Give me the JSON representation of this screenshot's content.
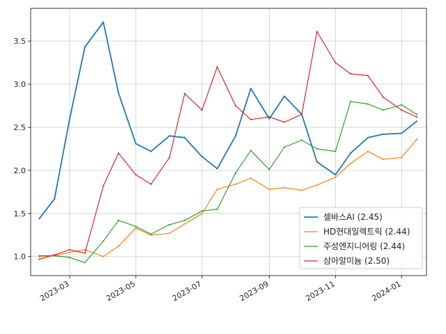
{
  "chart_data": {
    "type": "line",
    "x_dates": [
      "2023-02-01",
      "2023-02-15",
      "2023-03-01",
      "2023-03-15",
      "2023-04-01",
      "2023-04-15",
      "2023-05-01",
      "2023-05-15",
      "2023-06-01",
      "2023-06-15",
      "2023-07-01",
      "2023-07-15",
      "2023-08-01",
      "2023-08-15",
      "2023-09-01",
      "2023-09-15",
      "2023-10-01",
      "2023-10-15",
      "2023-11-01",
      "2023-11-15",
      "2023-12-01",
      "2023-12-15",
      "2024-01-01",
      "2024-01-15"
    ],
    "x_ticks": [
      "2023-03",
      "2023-05",
      "2023-07",
      "2023-09",
      "2023-11",
      "2024-01"
    ],
    "xlim": [
      "2023-01-24",
      "2024-01-24"
    ],
    "y_ticks": [
      "1.0",
      "1.5",
      "2.0",
      "2.5",
      "3.0",
      "3.5"
    ],
    "ylim": [
      0.78,
      3.88
    ],
    "grid": true,
    "legend_position": "lower-right",
    "series": [
      {
        "name": "셀바스AI (2.45)",
        "color": "#1f77b4",
        "values": [
          1.44,
          1.67,
          2.6,
          3.43,
          3.72,
          2.9,
          2.31,
          2.22,
          2.4,
          2.38,
          2.16,
          2.02,
          2.4,
          2.95,
          2.6,
          2.86,
          2.65,
          2.1,
          1.95,
          2.2,
          2.38,
          2.42,
          2.43,
          2.57
        ]
      },
      {
        "name": "HD현대일렉트릭 (2.44)",
        "color": "#ff7f0e",
        "values": [
          1.0,
          1.01,
          1.05,
          1.08,
          1.0,
          1.12,
          1.33,
          1.25,
          1.27,
          1.38,
          1.5,
          1.78,
          1.84,
          1.91,
          1.78,
          1.8,
          1.77,
          1.83,
          1.92,
          2.08,
          2.22,
          2.13,
          2.15,
          2.36
        ]
      },
      {
        "name": "주성엔지니어링 (2.44)",
        "color": "#2ca02c",
        "values": [
          1.01,
          1.01,
          0.99,
          0.93,
          1.18,
          1.42,
          1.35,
          1.26,
          1.37,
          1.42,
          1.53,
          1.55,
          1.97,
          2.23,
          2.01,
          2.27,
          2.35,
          2.25,
          2.22,
          2.8,
          2.77,
          2.7,
          2.76,
          2.65
        ]
      },
      {
        "name": "삼아알미늄 (2.50)",
        "color": "#d62728",
        "values": [
          0.97,
          1.02,
          1.08,
          1.04,
          1.82,
          2.2,
          1.95,
          1.84,
          2.15,
          2.89,
          2.7,
          3.2,
          2.75,
          2.59,
          2.62,
          2.56,
          2.65,
          3.61,
          3.25,
          3.12,
          3.1,
          2.85,
          2.7,
          2.62
        ]
      }
    ]
  }
}
